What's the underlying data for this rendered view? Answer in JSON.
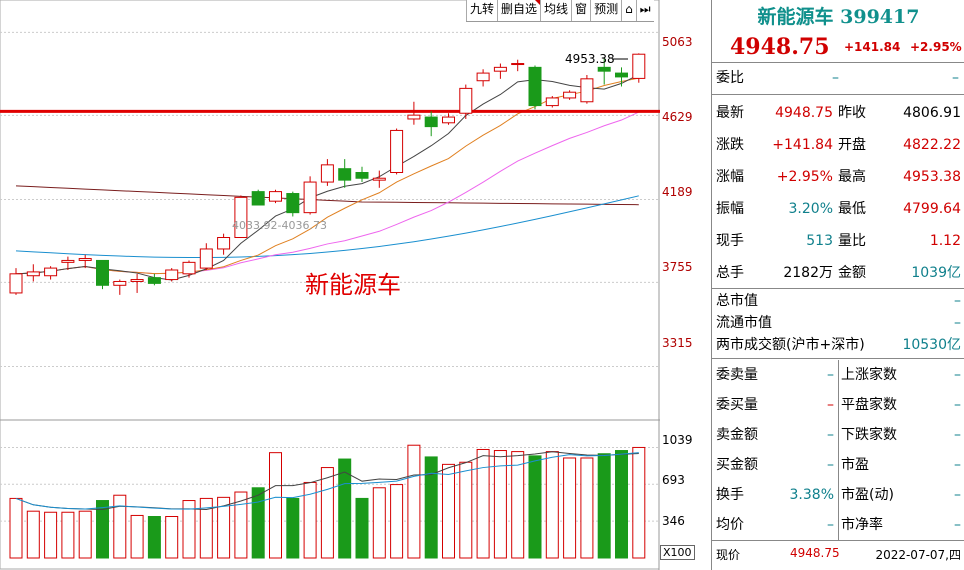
{
  "toolbar": {
    "buttons": [
      "九转",
      "删自选",
      "均线",
      "窗",
      "预测",
      "⌂",
      "⏭"
    ]
  },
  "chart": {
    "price_axis": [
      "5063",
      "4629",
      "4189",
      "3755",
      "3315"
    ],
    "volume_axis": [
      "1039",
      "693",
      "346"
    ],
    "volume_unit": "X100",
    "watermark": "新能源车",
    "high_label": "4953.38",
    "gap_label": "4033.92-4036.73",
    "colors": {
      "up": "#d40000",
      "down": "#1a9a1a",
      "support_line": "#e00000",
      "ma5": "#444444",
      "ma10": "#e08020",
      "ma20": "#ee66ee",
      "ma60": "#7a1e1e",
      "ma120": "#1a8fcf"
    }
  },
  "chart_data": {
    "type": "candlestick",
    "title": "新能源车",
    "y_axis_ticks": [
      3315,
      3755,
      4189,
      4629,
      5063
    ],
    "ylim": [
      3140,
      5180
    ],
    "reference_line": 4650,
    "candles": [
      {
        "o": 3700,
        "h": 3830,
        "l": 3690,
        "c": 3800
      },
      {
        "o": 3790,
        "h": 3850,
        "l": 3760,
        "c": 3810
      },
      {
        "o": 3790,
        "h": 3840,
        "l": 3770,
        "c": 3830
      },
      {
        "o": 3860,
        "h": 3890,
        "l": 3820,
        "c": 3870
      },
      {
        "o": 3870,
        "h": 3900,
        "l": 3830,
        "c": 3880
      },
      {
        "o": 3870,
        "h": 3870,
        "l": 3720,
        "c": 3740
      },
      {
        "o": 3740,
        "h": 3770,
        "l": 3690,
        "c": 3760
      },
      {
        "o": 3760,
        "h": 3800,
        "l": 3700,
        "c": 3770
      },
      {
        "o": 3780,
        "h": 3800,
        "l": 3740,
        "c": 3750
      },
      {
        "o": 3770,
        "h": 3830,
        "l": 3760,
        "c": 3820
      },
      {
        "o": 3800,
        "h": 3870,
        "l": 3780,
        "c": 3860
      },
      {
        "o": 3830,
        "h": 3960,
        "l": 3820,
        "c": 3930
      },
      {
        "o": 3930,
        "h": 4010,
        "l": 3900,
        "c": 3990
      },
      {
        "o": 3990,
        "h": 4210,
        "l": 3990,
        "c": 4200
      },
      {
        "o": 4230,
        "h": 4240,
        "l": 4160,
        "c": 4160
      },
      {
        "o": 4180,
        "h": 4240,
        "l": 4170,
        "c": 4230
      },
      {
        "o": 4220,
        "h": 4230,
        "l": 4100,
        "c": 4120
      },
      {
        "o": 4120,
        "h": 4310,
        "l": 4110,
        "c": 4280
      },
      {
        "o": 4280,
        "h": 4400,
        "l": 4260,
        "c": 4370
      },
      {
        "o": 4350,
        "h": 4400,
        "l": 4250,
        "c": 4290
      },
      {
        "o": 4330,
        "h": 4360,
        "l": 4280,
        "c": 4300
      },
      {
        "o": 4290,
        "h": 4340,
        "l": 4250,
        "c": 4300
      },
      {
        "o": 4330,
        "h": 4560,
        "l": 4320,
        "c": 4550
      },
      {
        "o": 4610,
        "h": 4700,
        "l": 4580,
        "c": 4630
      },
      {
        "o": 4620,
        "h": 4650,
        "l": 4520,
        "c": 4570
      },
      {
        "o": 4590,
        "h": 4640,
        "l": 4580,
        "c": 4620
      },
      {
        "o": 4640,
        "h": 4790,
        "l": 4610,
        "c": 4770
      },
      {
        "o": 4810,
        "h": 4870,
        "l": 4780,
        "c": 4850
      },
      {
        "o": 4860,
        "h": 4900,
        "l": 4820,
        "c": 4880
      },
      {
        "o": 4900,
        "h": 4920,
        "l": 4860,
        "c": 4900
      },
      {
        "o": 4880,
        "h": 4890,
        "l": 4660,
        "c": 4680
      },
      {
        "o": 4680,
        "h": 4730,
        "l": 4670,
        "c": 4720
      },
      {
        "o": 4720,
        "h": 4760,
        "l": 4710,
        "c": 4750
      },
      {
        "o": 4700,
        "h": 4840,
        "l": 4690,
        "c": 4820
      },
      {
        "o": 4880,
        "h": 4930,
        "l": 4790,
        "c": 4860
      },
      {
        "o": 4850,
        "h": 4880,
        "l": 4780,
        "c": 4830
      },
      {
        "o": 4822.22,
        "h": 4953.38,
        "l": 4799.64,
        "c": 4948.75
      }
    ],
    "volumes": [
      560,
      440,
      430,
      430,
      440,
      540,
      590,
      400,
      390,
      390,
      540,
      560,
      570,
      620,
      660,
      990,
      560,
      710,
      850,
      930,
      560,
      660,
      690,
      1060,
      950,
      880,
      900,
      1020,
      1010,
      1000,
      960,
      1000,
      940,
      940,
      980,
      1010,
      1039
    ],
    "volume_ylim": [
      0,
      1250
    ]
  },
  "panel": {
    "title": "新能源车 399417",
    "price": "4948.75",
    "change": "+141.84",
    "change_pct": "+2.95%",
    "weibi": {
      "label": "委比",
      "v1": "–",
      "v2": "–"
    },
    "rows": [
      {
        "l1": "最新",
        "v1": "4948.75",
        "c1": "red",
        "l2": "昨收",
        "v2": "4806.91",
        "c2": "blk"
      },
      {
        "l1": "涨跌",
        "v1": "+141.84",
        "c1": "red",
        "l2": "开盘",
        "v2": "4822.22",
        "c2": "red"
      },
      {
        "l1": "涨幅",
        "v1": "+2.95%",
        "c1": "red",
        "l2": "最高",
        "v2": "4953.38",
        "c2": "red"
      },
      {
        "l1": "振幅",
        "v1": "3.20%",
        "c1": "teal",
        "l2": "最低",
        "v2": "4799.64",
        "c2": "red"
      },
      {
        "l1": "现手",
        "v1": "513",
        "c1": "teal",
        "l2": "量比",
        "v2": "1.12",
        "c2": "red"
      },
      {
        "l1": "总手",
        "v1": "2182万",
        "c1": "blk",
        "l2": "金额",
        "v2": "1039亿",
        "c2": "teal"
      }
    ],
    "caps": [
      {
        "label": "总市值",
        "value": "–",
        "color": "teal"
      },
      {
        "label": "流通市值",
        "value": "–",
        "color": "teal"
      },
      {
        "label": "两市成交额(沪市+深市)",
        "value": "10530亿",
        "color": "teal"
      }
    ],
    "bottom": [
      {
        "l1": "委卖量",
        "v1": "–",
        "c1": "teal",
        "l2": "上涨家数",
        "v2": "–",
        "c2": "teal"
      },
      {
        "l1": "委买量",
        "v1": "–",
        "c1": "red",
        "l2": "平盘家数",
        "v2": "–",
        "c2": "teal"
      },
      {
        "l1": "卖金额",
        "v1": "–",
        "c1": "teal",
        "l2": "下跌家数",
        "v2": "–",
        "c2": "teal"
      },
      {
        "l1": "买金额",
        "v1": "–",
        "c1": "teal",
        "l2": "市盈",
        "v2": "–",
        "c2": "teal"
      },
      {
        "l1": "换手",
        "v1": "3.38%",
        "c1": "teal",
        "l2": "市盈(动)",
        "v2": "–",
        "c2": "teal"
      },
      {
        "l1": "均价",
        "v1": "–",
        "c1": "teal",
        "l2": "市净率",
        "v2": "–",
        "c2": "teal"
      }
    ],
    "footer": {
      "label": "现价",
      "price": "4948.75",
      "date": "2022-07-07,四"
    }
  }
}
